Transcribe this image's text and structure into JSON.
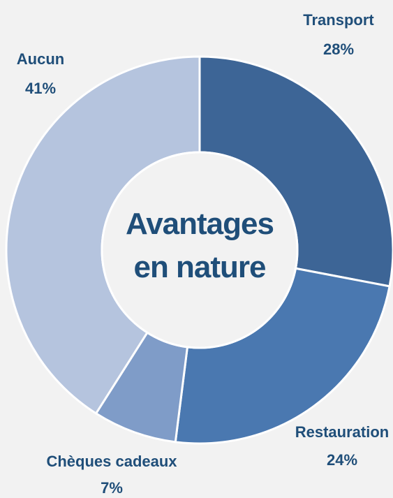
{
  "chart_data": {
    "type": "pie",
    "title": "Avantages en nature",
    "categories": [
      "Transport",
      "Restauration",
      "Chèques cadeaux",
      "Aucun"
    ],
    "values": [
      28,
      24,
      7,
      41
    ],
    "value_labels": [
      "28%",
      "24%",
      "7%",
      "41%"
    ],
    "colors": [
      "#3d6596",
      "#4a78b0",
      "#7f9cc8",
      "#b5c4de"
    ]
  }
}
